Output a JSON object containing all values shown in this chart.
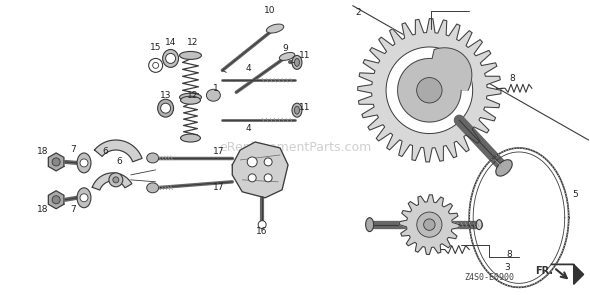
{
  "background_color": "#ffffff",
  "watermark_text": "eReplacementParts.com",
  "watermark_color": "#bbbbbb",
  "diagram_code": "Z4S0-E0900",
  "fr_label": "FR.",
  "fig_width": 5.9,
  "fig_height": 2.95,
  "dpi": 100
}
